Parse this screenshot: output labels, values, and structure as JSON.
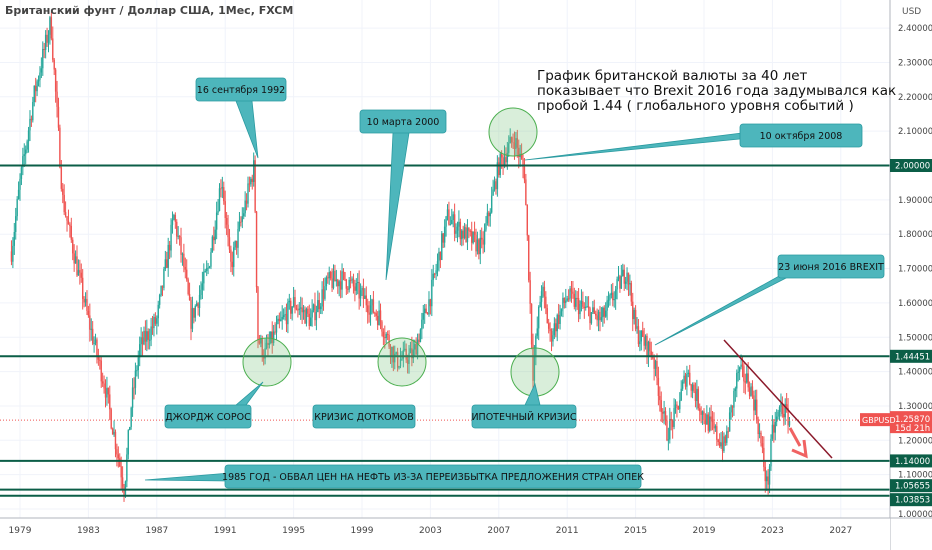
{
  "header": {
    "title": "Британский фунт / Доллар США, 1Мес, FXCM"
  },
  "note": [
    "График британской валюты за 40 лет",
    "показывает что Brexit 2016 года задумывался как",
    "пробой 1.44 ( глобального уровня событий )"
  ],
  "annotations": {
    "sep1992": "16 сентября 1992",
    "mar2000": "10 марта 2000",
    "oct2008": "10 октября 2008",
    "brexit": "23 июня 2016 BREXIT",
    "soros": "ДЖОРДЖ СОРОС",
    "dotcom": "КРИЗИС ДОТКОМОВ",
    "mortgage": "ИПОТЕЧНЫЙ КРИЗИС",
    "oil1985": "1985 ГОД - ОБВАЛ ЦЕН НА НЕФТЬ ИЗ-ЗА ПЕРЕИЗБЫТКА ПРЕДЛОЖЕНИЯ СТРАН ОПЕК"
  },
  "colors": {
    "up": "#26a69a",
    "down": "#ef5350",
    "level": "#0b5e47",
    "box": "#4db6bc",
    "trend": "#8b1a2b"
  },
  "chart_data": {
    "type": "candlestick",
    "symbol": "GBPUSD",
    "currency_label": "USD",
    "last_price_label": "1.25870",
    "countdown": "15d 21h",
    "ylim": [
      0.95,
      2.47
    ],
    "y_ticks": [
      "2.40000",
      "2.30000",
      "2.20000",
      "2.10000",
      "1.90000",
      "1.80000",
      "1.70000",
      "1.60000",
      "1.50000",
      "1.40000",
      "1.30000",
      "1.20000",
      "1.10000",
      "1.00000"
    ],
    "x_ticks": [
      "1979",
      "1983",
      "1987",
      "1991",
      "1995",
      "1999",
      "2003",
      "2007",
      "2011",
      "2015",
      "2019",
      "2023",
      "2027"
    ],
    "levels": [
      {
        "value": 2.0,
        "label": "2.00000"
      },
      {
        "value": 1.44451,
        "label": "1.44451"
      },
      {
        "value": 1.14,
        "label": "1.14000"
      },
      {
        "value": 1.05655,
        "label": "1.05655"
      },
      {
        "value": 1.03853,
        "label": "1.03853"
      }
    ],
    "last_price": 1.2587,
    "price_path": [
      [
        1978.5,
        1.75
      ],
      [
        1979,
        1.95
      ],
      [
        1979.8,
        2.2
      ],
      [
        1980.8,
        2.42
      ],
      [
        1981.5,
        1.9
      ],
      [
        1982,
        1.78
      ],
      [
        1983,
        1.55
      ],
      [
        1984,
        1.35
      ],
      [
        1985.1,
        1.06
      ],
      [
        1985.5,
        1.3
      ],
      [
        1986,
        1.47
      ],
      [
        1987,
        1.55
      ],
      [
        1988,
        1.85
      ],
      [
        1988.6,
        1.7
      ],
      [
        1989,
        1.55
      ],
      [
        1990,
        1.7
      ],
      [
        1990.8,
        1.97
      ],
      [
        1991.3,
        1.7
      ],
      [
        1992.7,
        2.0
      ],
      [
        1992.9,
        1.5
      ],
      [
        1993.3,
        1.45
      ],
      [
        1994,
        1.52
      ],
      [
        1995,
        1.6
      ],
      [
        1996,
        1.55
      ],
      [
        1997,
        1.66
      ],
      [
        1998,
        1.67
      ],
      [
        1999,
        1.62
      ],
      [
        2000,
        1.56
      ],
      [
        2001,
        1.43
      ],
      [
        2002,
        1.45
      ],
      [
        2003,
        1.62
      ],
      [
        2004,
        1.85
      ],
      [
        2005,
        1.8
      ],
      [
        2006,
        1.76
      ],
      [
        2007,
        2.0
      ],
      [
        2007.9,
        2.08
      ],
      [
        2008.5,
        1.98
      ],
      [
        2009,
        1.4
      ],
      [
        2009.5,
        1.65
      ],
      [
        2010,
        1.5
      ],
      [
        2011,
        1.62
      ],
      [
        2012,
        1.58
      ],
      [
        2013,
        1.55
      ],
      [
        2014.5,
        1.7
      ],
      [
        2015,
        1.52
      ],
      [
        2016,
        1.45
      ],
      [
        2016.8,
        1.22
      ],
      [
        2017.3,
        1.27
      ],
      [
        2018,
        1.4
      ],
      [
        2019,
        1.27
      ],
      [
        2020.2,
        1.18
      ],
      [
        2021,
        1.4
      ],
      [
        2021.6,
        1.37
      ],
      [
        2022,
        1.3
      ],
      [
        2022.7,
        1.06
      ],
      [
        2023,
        1.22
      ],
      [
        2023.5,
        1.3
      ],
      [
        2024,
        1.26
      ]
    ]
  }
}
